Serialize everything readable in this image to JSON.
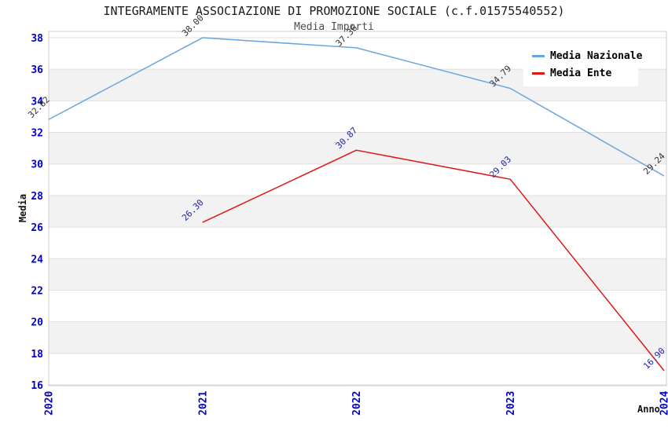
{
  "title": "INTEGRAMENTE ASSOCIAZIONE DI PROMOZIONE SOCIALE (c.f.01575540552)",
  "subtitle": "Media Importi",
  "chart_data": {
    "type": "line",
    "title": "INTEGRAMENTE ASSOCIAZIONE DI PROMOZIONE SOCIALE (c.f.01575540552)",
    "subtitle": "Media Importi",
    "xlabel": "Anno",
    "ylabel": "Media",
    "x": [
      2020,
      2021,
      2022,
      2023,
      2024
    ],
    "xtick_labels": [
      "2020",
      "2021",
      "2022",
      "2023",
      "2024"
    ],
    "yticks": [
      16,
      18,
      20,
      22,
      24,
      26,
      28,
      30,
      32,
      34,
      36,
      38
    ],
    "ylim": [
      16,
      38
    ],
    "grid": "horizontal",
    "background_bands": true,
    "legend_position": "top-right",
    "series": [
      {
        "name": "Media Nazionale",
        "color": "#6aa5db",
        "label_color": "#333333",
        "x": [
          2020,
          2021,
          2022,
          2023,
          2024
        ],
        "values": [
          32.82,
          38.0,
          37.36,
          34.79,
          29.24
        ],
        "point_labels": [
          "32.82",
          "38.00",
          "37.36",
          "34.79",
          "29.24"
        ]
      },
      {
        "name": "Media Ente",
        "color": "#e01717",
        "label_color": "#2222aa",
        "x": [
          2021,
          2022,
          2023,
          2024
        ],
        "values": [
          26.3,
          30.87,
          29.03,
          16.9
        ],
        "point_labels": [
          "26.30",
          "30.87",
          "29.03",
          "16.90"
        ]
      }
    ]
  },
  "colors": {
    "tick_label": "#0000cc",
    "band_fill": "#f2f2f2",
    "grid_line": "#e0e0e0",
    "plot_border": "#cccccc",
    "title_text": "#1a1a1a",
    "subtitle_text": "#4a4a4a"
  }
}
